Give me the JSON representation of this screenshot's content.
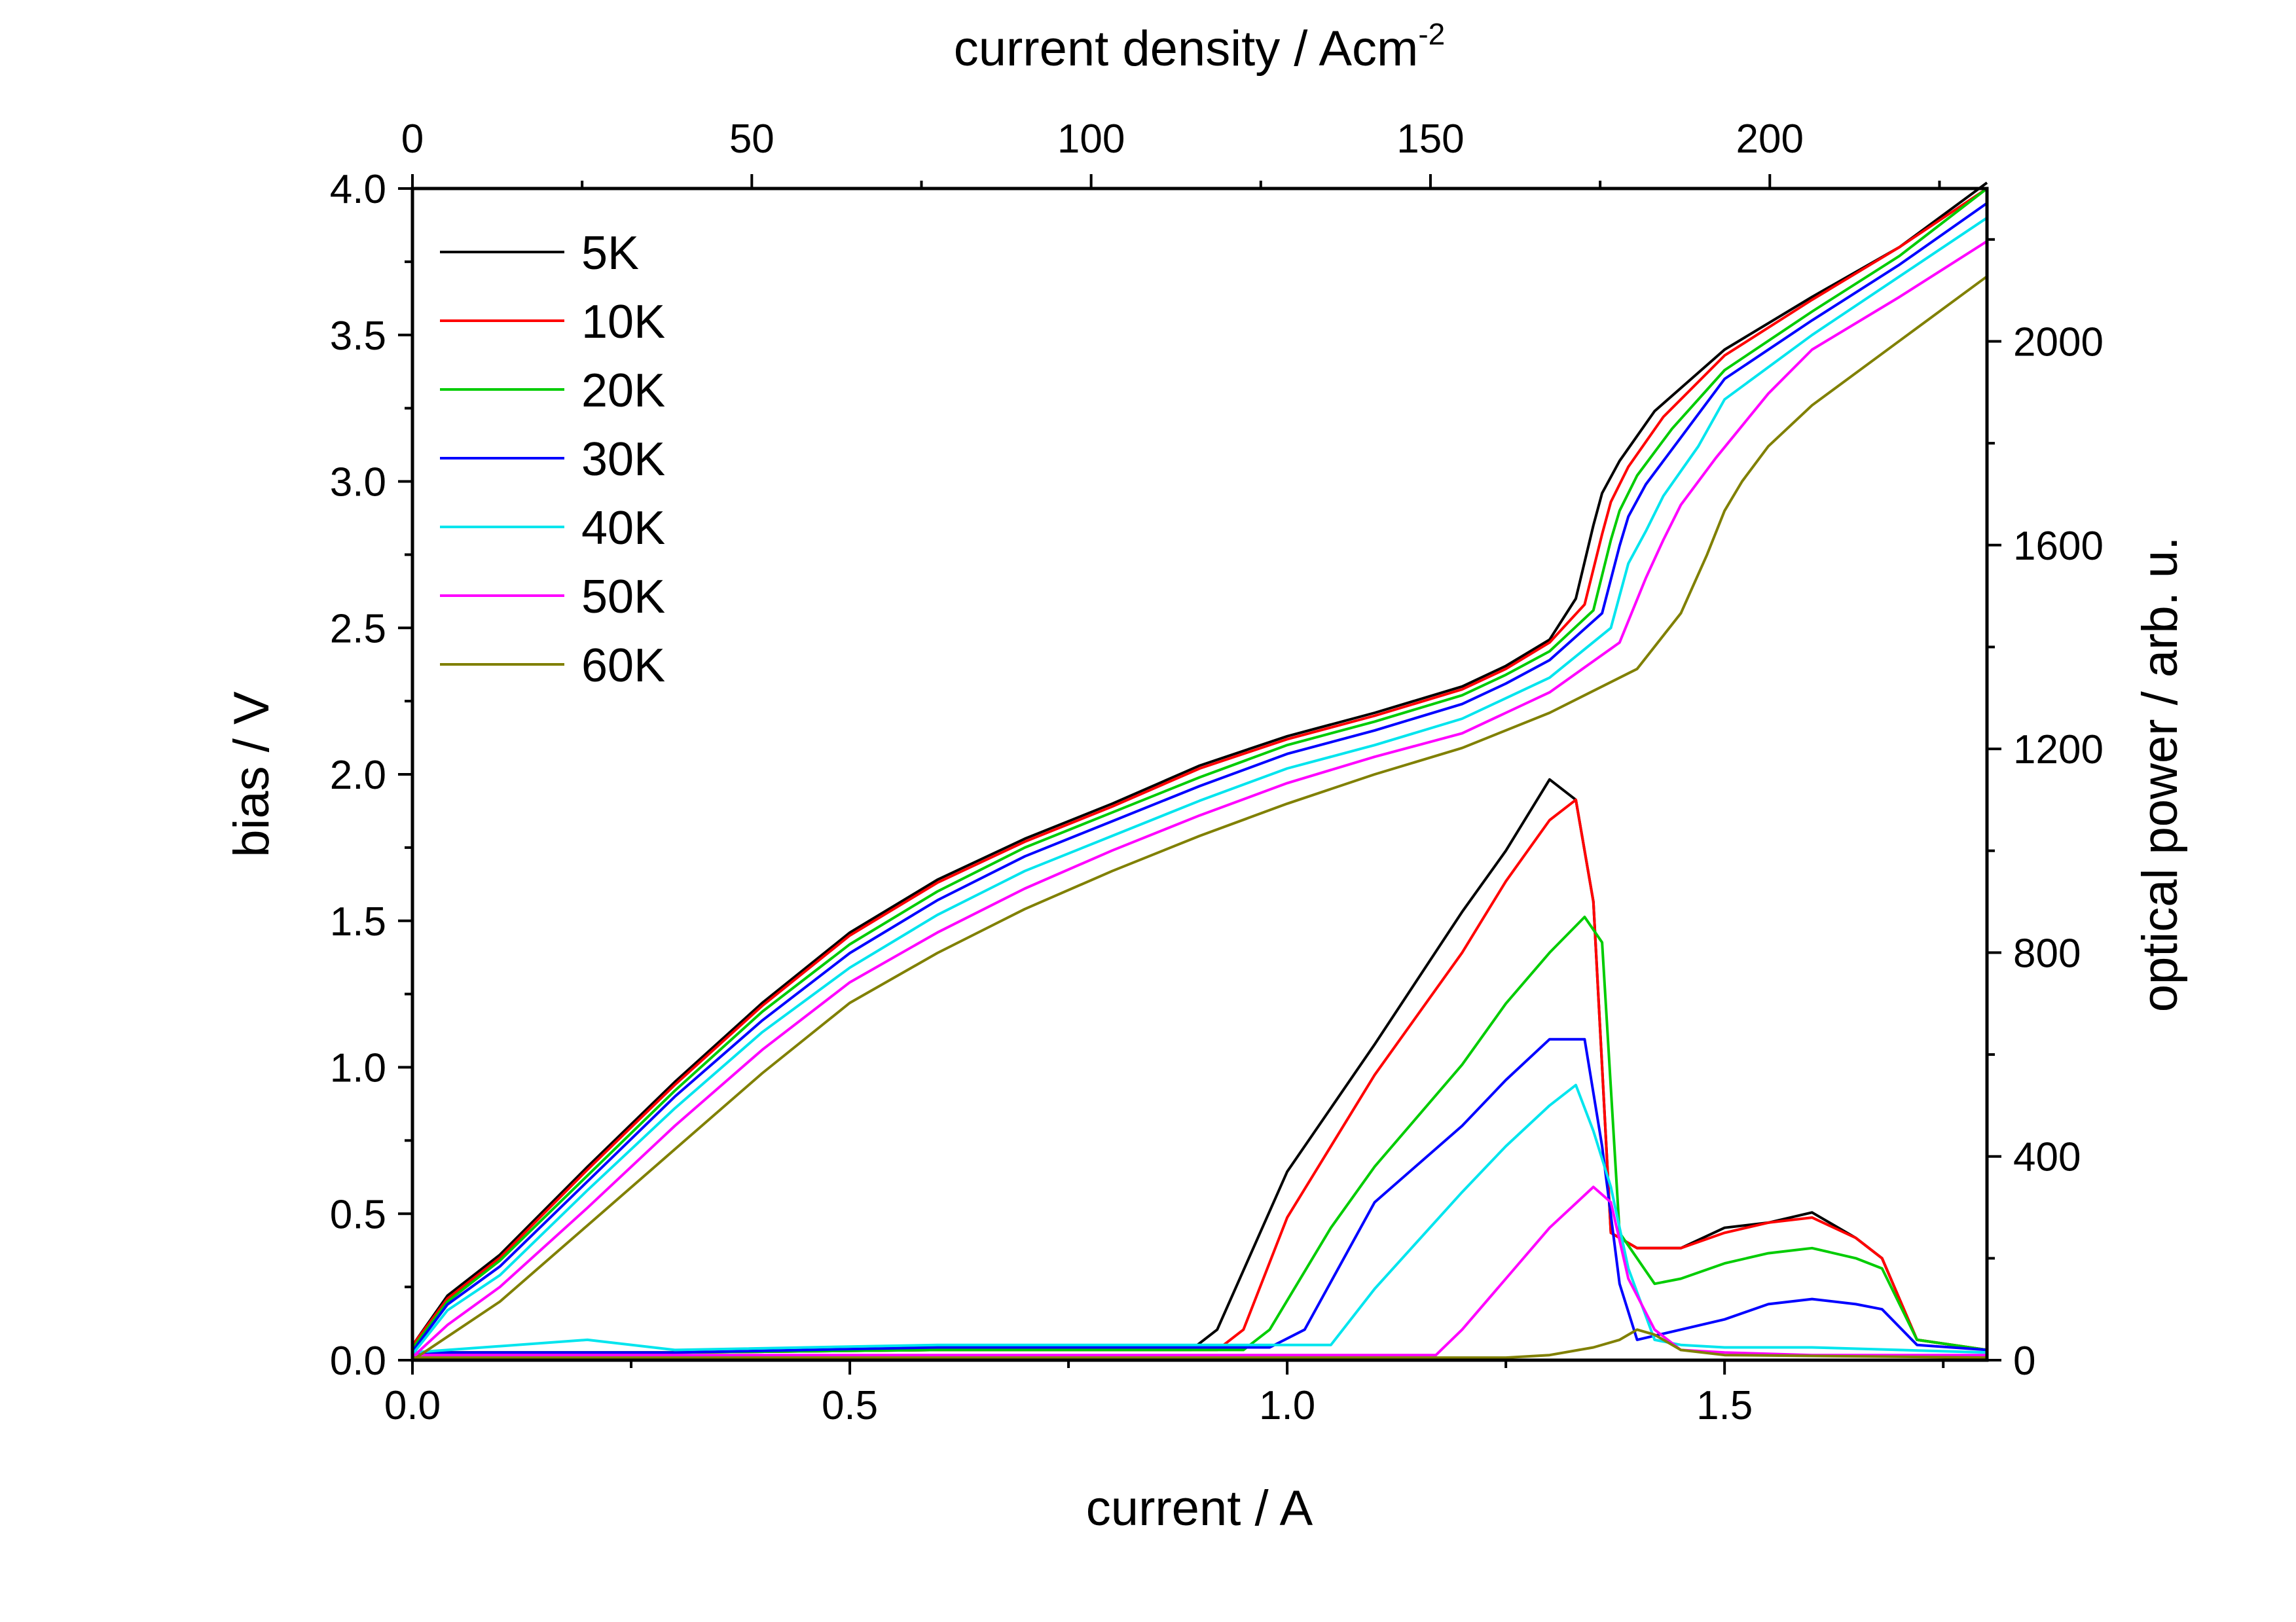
{
  "chart_data": {
    "type": "line",
    "title": "",
    "xlabel": "current / A",
    "ylabel": "bias / V",
    "x2label": "current density / Acm",
    "x2label_superscript": "-2",
    "y2label": "optical power / arb. u.",
    "xlim": [
      0,
      1.8
    ],
    "ylim": [
      0,
      4.0
    ],
    "x2lim": [
      0,
      232
    ],
    "y2lim": [
      0,
      2300
    ],
    "x_ticks": [
      "0.0",
      "0.5",
      "1.0",
      "1.5"
    ],
    "y_ticks": [
      "0.0",
      "0.5",
      "1.0",
      "1.5",
      "2.0",
      "2.5",
      "3.0",
      "3.5",
      "4.0"
    ],
    "x2_ticks": [
      "0",
      "50",
      "100",
      "150",
      "200"
    ],
    "y2_ticks": [
      "0",
      "400",
      "800",
      "1200",
      "1600",
      "2000"
    ],
    "grid": false,
    "legend_position": "top-left",
    "series": [
      {
        "name": "5K",
        "color": "#000000",
        "bias": {
          "x": [
            0,
            0.04,
            0.1,
            0.2,
            0.3,
            0.4,
            0.5,
            0.6,
            0.7,
            0.8,
            0.9,
            1.0,
            1.1,
            1.2,
            1.25,
            1.3,
            1.33,
            1.35,
            1.36,
            1.38,
            1.42,
            1.5,
            1.6,
            1.7,
            1.8
          ],
          "y": [
            0.05,
            0.22,
            0.36,
            0.66,
            0.95,
            1.22,
            1.46,
            1.64,
            1.78,
            1.9,
            2.03,
            2.13,
            2.21,
            2.3,
            2.37,
            2.46,
            2.6,
            2.85,
            2.96,
            3.07,
            3.24,
            3.45,
            3.63,
            3.8,
            4.02
          ]
        },
        "power": {
          "x": [
            0,
            0.3,
            0.6,
            0.89,
            0.92,
            1.0,
            1.1,
            1.2,
            1.25,
            1.3,
            1.33,
            1.35,
            1.37,
            1.4,
            1.45,
            1.5,
            1.55,
            1.6,
            1.65,
            1.68,
            1.72,
            1.8
          ],
          "y": [
            15,
            15,
            20,
            20,
            60,
            370,
            620,
            880,
            1000,
            1140,
            1100,
            900,
            250,
            220,
            220,
            260,
            270,
            290,
            240,
            200,
            40,
            20
          ]
        }
      },
      {
        "name": "10K",
        "color": "#ff0000",
        "bias": {
          "x": [
            0,
            0.04,
            0.1,
            0.2,
            0.3,
            0.4,
            0.5,
            0.6,
            0.7,
            0.8,
            0.9,
            1.0,
            1.1,
            1.2,
            1.25,
            1.3,
            1.34,
            1.36,
            1.37,
            1.39,
            1.43,
            1.5,
            1.6,
            1.7,
            1.8
          ],
          "y": [
            0.05,
            0.21,
            0.35,
            0.65,
            0.94,
            1.21,
            1.45,
            1.63,
            1.77,
            1.89,
            2.02,
            2.12,
            2.2,
            2.29,
            2.36,
            2.45,
            2.58,
            2.82,
            2.93,
            3.05,
            3.22,
            3.43,
            3.62,
            3.8,
            4.0
          ]
        },
        "power": {
          "x": [
            0,
            0.3,
            0.6,
            0.92,
            0.95,
            1.0,
            1.1,
            1.2,
            1.25,
            1.3,
            1.33,
            1.35,
            1.37,
            1.4,
            1.45,
            1.5,
            1.55,
            1.6,
            1.65,
            1.68,
            1.72,
            1.8
          ],
          "y": [
            15,
            15,
            20,
            20,
            60,
            280,
            560,
            800,
            940,
            1060,
            1100,
            900,
            250,
            220,
            220,
            250,
            270,
            280,
            240,
            200,
            40,
            20
          ]
        }
      },
      {
        "name": "20K",
        "color": "#00cc00",
        "bias": {
          "x": [
            0,
            0.04,
            0.1,
            0.2,
            0.3,
            0.4,
            0.5,
            0.6,
            0.7,
            0.8,
            0.9,
            1.0,
            1.1,
            1.2,
            1.25,
            1.3,
            1.35,
            1.37,
            1.38,
            1.4,
            1.44,
            1.5,
            1.6,
            1.7,
            1.8
          ],
          "y": [
            0.04,
            0.2,
            0.34,
            0.63,
            0.92,
            1.19,
            1.42,
            1.6,
            1.75,
            1.87,
            1.99,
            2.1,
            2.18,
            2.27,
            2.34,
            2.42,
            2.56,
            2.8,
            2.9,
            3.02,
            3.18,
            3.38,
            3.58,
            3.77,
            4.0
          ]
        },
        "power": {
          "x": [
            0,
            0.3,
            0.6,
            0.95,
            0.98,
            1.05,
            1.1,
            1.2,
            1.25,
            1.3,
            1.34,
            1.36,
            1.38,
            1.42,
            1.45,
            1.5,
            1.55,
            1.6,
            1.65,
            1.68,
            1.72,
            1.8
          ],
          "y": [
            15,
            15,
            20,
            20,
            60,
            260,
            380,
            580,
            700,
            800,
            870,
            820,
            250,
            150,
            160,
            190,
            210,
            220,
            200,
            180,
            40,
            20
          ]
        }
      },
      {
        "name": "30K",
        "color": "#0000ff",
        "bias": {
          "x": [
            0,
            0.04,
            0.1,
            0.2,
            0.3,
            0.4,
            0.5,
            0.6,
            0.7,
            0.8,
            0.9,
            1.0,
            1.1,
            1.2,
            1.25,
            1.3,
            1.36,
            1.38,
            1.39,
            1.41,
            1.45,
            1.5,
            1.6,
            1.7,
            1.8
          ],
          "y": [
            0.03,
            0.19,
            0.32,
            0.61,
            0.9,
            1.16,
            1.39,
            1.57,
            1.72,
            1.84,
            1.96,
            2.07,
            2.15,
            2.24,
            2.31,
            2.39,
            2.55,
            2.78,
            2.88,
            2.99,
            3.15,
            3.35,
            3.55,
            3.74,
            3.95
          ]
        },
        "power": {
          "x": [
            0,
            0.3,
            0.6,
            0.98,
            1.02,
            1.1,
            1.2,
            1.25,
            1.3,
            1.34,
            1.36,
            1.38,
            1.4,
            1.45,
            1.5,
            1.55,
            1.6,
            1.65,
            1.68,
            1.72,
            1.8
          ],
          "y": [
            15,
            15,
            25,
            25,
            60,
            310,
            460,
            550,
            630,
            630,
            420,
            150,
            40,
            60,
            80,
            110,
            120,
            110,
            100,
            30,
            20
          ]
        }
      },
      {
        "name": "40K",
        "color": "#00e5ee",
        "bias": {
          "x": [
            0,
            0.04,
            0.1,
            0.2,
            0.3,
            0.4,
            0.5,
            0.6,
            0.7,
            0.8,
            0.9,
            1.0,
            1.1,
            1.2,
            1.25,
            1.3,
            1.37,
            1.39,
            1.41,
            1.43,
            1.47,
            1.5,
            1.6,
            1.7,
            1.8
          ],
          "y": [
            0.02,
            0.17,
            0.29,
            0.58,
            0.86,
            1.12,
            1.34,
            1.52,
            1.67,
            1.79,
            1.91,
            2.02,
            2.1,
            2.19,
            2.26,
            2.33,
            2.5,
            2.72,
            2.83,
            2.95,
            3.12,
            3.28,
            3.5,
            3.7,
            3.9
          ]
        },
        "power": {
          "x": [
            0,
            0.2,
            0.3,
            0.6,
            1.05,
            1.1,
            1.2,
            1.25,
            1.3,
            1.33,
            1.35,
            1.37,
            1.39,
            1.42,
            1.45,
            1.5,
            1.6,
            1.7,
            1.8
          ],
          "y": [
            15,
            40,
            20,
            30,
            30,
            140,
            330,
            420,
            500,
            540,
            450,
            340,
            180,
            40,
            30,
            25,
            25,
            20,
            15
          ]
        }
      },
      {
        "name": "50K",
        "color": "#ff00ff",
        "bias": {
          "x": [
            0,
            0.04,
            0.1,
            0.2,
            0.3,
            0.4,
            0.5,
            0.6,
            0.7,
            0.8,
            0.9,
            1.0,
            1.1,
            1.2,
            1.25,
            1.3,
            1.38,
            1.41,
            1.43,
            1.45,
            1.49,
            1.55,
            1.6,
            1.7,
            1.8
          ],
          "y": [
            0.01,
            0.12,
            0.25,
            0.52,
            0.8,
            1.06,
            1.29,
            1.46,
            1.61,
            1.74,
            1.86,
            1.97,
            2.06,
            2.14,
            2.21,
            2.28,
            2.45,
            2.67,
            2.8,
            2.92,
            3.08,
            3.3,
            3.45,
            3.63,
            3.82
          ]
        },
        "power": {
          "x": [
            0,
            0.6,
            1.17,
            1.2,
            1.25,
            1.3,
            1.35,
            1.37,
            1.39,
            1.42,
            1.45,
            1.5,
            1.6,
            1.8
          ],
          "y": [
            10,
            10,
            10,
            60,
            160,
            260,
            340,
            310,
            160,
            60,
            20,
            15,
            10,
            10
          ]
        }
      },
      {
        "name": "60K",
        "color": "#808000",
        "bias": {
          "x": [
            0,
            0.04,
            0.1,
            0.2,
            0.3,
            0.4,
            0.5,
            0.6,
            0.7,
            0.8,
            0.9,
            1.0,
            1.1,
            1.2,
            1.3,
            1.4,
            1.45,
            1.48,
            1.5,
            1.52,
            1.55,
            1.6,
            1.7,
            1.8
          ],
          "y": [
            0.0,
            0.08,
            0.2,
            0.46,
            0.72,
            0.98,
            1.22,
            1.39,
            1.54,
            1.67,
            1.79,
            1.9,
            2.0,
            2.09,
            2.21,
            2.36,
            2.55,
            2.75,
            2.9,
            3.0,
            3.12,
            3.26,
            3.48,
            3.7
          ]
        },
        "power": {
          "x": [
            0,
            0.8,
            1.25,
            1.3,
            1.35,
            1.38,
            1.4,
            1.42,
            1.45,
            1.5,
            1.8
          ],
          "y": [
            5,
            5,
            5,
            10,
            25,
            40,
            60,
            50,
            20,
            10,
            5
          ]
        }
      }
    ]
  }
}
